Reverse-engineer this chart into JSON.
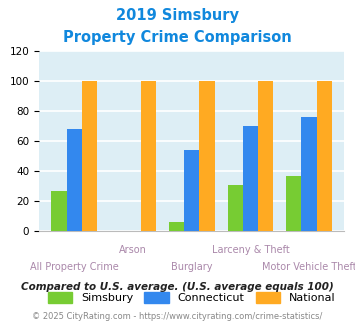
{
  "title_line1": "2019 Simsbury",
  "title_line2": "Property Crime Comparison",
  "categories": [
    "All Property Crime",
    "Arson",
    "Burglary",
    "Larceny & Theft",
    "Motor Vehicle Theft"
  ],
  "simsbury": [
    27,
    0,
    6,
    31,
    37
  ],
  "connecticut": [
    68,
    0,
    54,
    70,
    76
  ],
  "national": [
    100,
    100,
    100,
    100,
    100
  ],
  "bar_colors": {
    "simsbury": "#77cc33",
    "connecticut": "#3388ee",
    "national": "#ffaa22"
  },
  "ylim": [
    0,
    120
  ],
  "yticks": [
    0,
    20,
    40,
    60,
    80,
    100,
    120
  ],
  "title_color": "#1188dd",
  "legend_labels": [
    "Simsbury",
    "Connecticut",
    "National"
  ],
  "footnote1": "Compared to U.S. average. (U.S. average equals 100)",
  "footnote2": "© 2025 CityRating.com - https://www.cityrating.com/crime-statistics/",
  "footnote1_color": "#222222",
  "footnote2_color": "#888888",
  "bg_color": "#ddeef5",
  "fig_bg": "#ffffff",
  "grid_color": "#ffffff",
  "x_top_labels": [
    "",
    "Arson",
    "",
    "Larceny & Theft",
    ""
  ],
  "x_bottom_labels": [
    "All Property Crime",
    "",
    "Burglary",
    "",
    "Motor Vehicle Theft"
  ],
  "xlabel_color": "#aa88aa"
}
